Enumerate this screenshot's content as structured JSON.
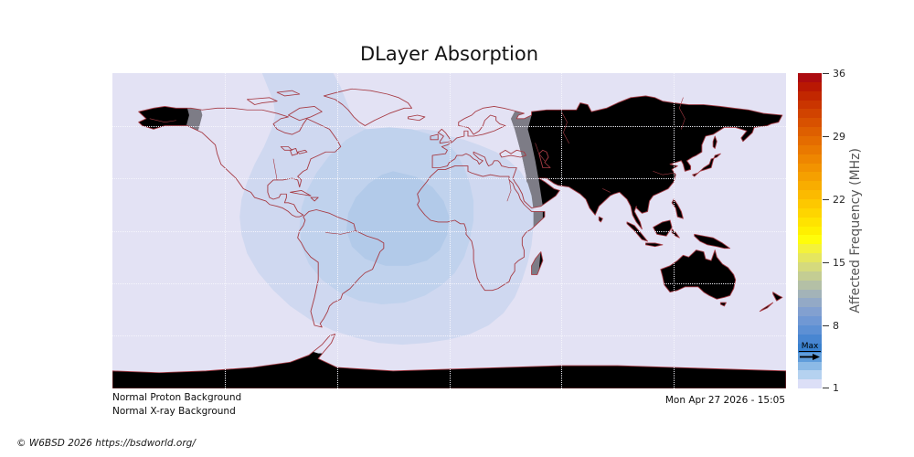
{
  "title": "DLayer Absorption",
  "annotations": {
    "proton": "Normal Proton Background",
    "xray": "Normal X-ray Background",
    "timestamp": "Mon Apr 27 2026 - 15:05",
    "credit": "© W6BSD 2026 https://bsdworld.org/"
  },
  "colorbar": {
    "label": "Affected Frequency (MHz)",
    "min": 1,
    "max": 36,
    "ticks": [
      36,
      29,
      22,
      15,
      8,
      1
    ],
    "max_marker_label": "Max",
    "segments": [
      "#ac0c10",
      "#b91803",
      "#c22700",
      "#ca3500",
      "#d14300",
      "#d85100",
      "#de5f00",
      "#e46c00",
      "#e97900",
      "#ee8600",
      "#f29300",
      "#f5a000",
      "#f8ad00",
      "#fbba00",
      "#fdc800",
      "#fed500",
      "#ffe300",
      "#fff000",
      "#fffd0a",
      "#f4f23b",
      "#e5e65f",
      "#d5da7d",
      "#c4cd93",
      "#b4c0a6",
      "#a3b3b8",
      "#93a9c6",
      "#82a0d0",
      "#7098d4",
      "#5d90d4",
      "#4886d1",
      "#3981cf",
      "#609ddb",
      "#8cbae6",
      "#b5d2f0",
      "#dcdff7"
    ]
  },
  "map": {
    "projection": "equirectangular",
    "colors": {
      "ocean": "#e3e2f4",
      "land": "#f6ddb3",
      "coast": "#a63b44",
      "level1": "#cfd8f0",
      "level2": "#c0d2ed",
      "level3": "#b2cae9"
    }
  }
}
